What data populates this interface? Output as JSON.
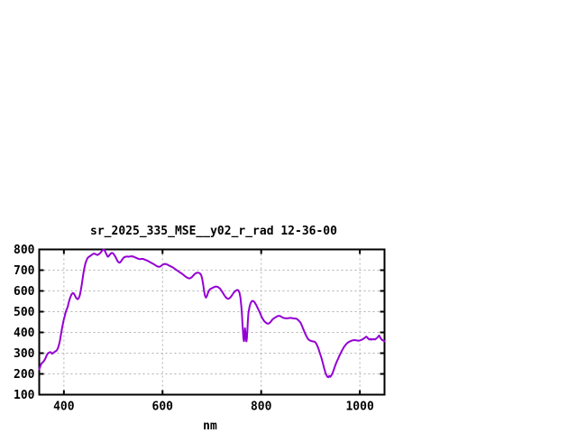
{
  "page": {
    "background": "#ffffff"
  },
  "chart_data": {
    "type": "line",
    "title": "sr_2025_335_MSE__y02_r_rad 12-36-00",
    "xlabel": "nm",
    "ylabel": "",
    "xlim": [
      350,
      1050
    ],
    "ylim": [
      100,
      800
    ],
    "xticks": [
      400,
      600,
      800,
      1000
    ],
    "yticks": [
      100,
      200,
      300,
      400,
      500,
      600,
      700,
      800
    ],
    "grid": true,
    "legend": "none",
    "line_color": "#9400d3",
    "grid_color": "#b0b0b0",
    "axis_color": "#000000",
    "series": [
      {
        "name": "sr_2025_335_MSE__y02_r_rad",
        "points": [
          [
            350,
            222
          ],
          [
            352,
            235
          ],
          [
            354,
            248
          ],
          [
            356,
            254
          ],
          [
            358,
            258
          ],
          [
            360,
            264
          ],
          [
            362,
            272
          ],
          [
            364,
            284
          ],
          [
            366,
            294
          ],
          [
            368,
            300
          ],
          [
            370,
            303
          ],
          [
            372,
            305
          ],
          [
            374,
            304
          ],
          [
            376,
            297
          ],
          [
            378,
            300
          ],
          [
            380,
            304
          ],
          [
            382,
            308
          ],
          [
            384,
            310
          ],
          [
            386,
            315
          ],
          [
            388,
            325
          ],
          [
            390,
            340
          ],
          [
            392,
            360
          ],
          [
            394,
            390
          ],
          [
            396,
            418
          ],
          [
            398,
            442
          ],
          [
            400,
            465
          ],
          [
            402,
            482
          ],
          [
            404,
            500
          ],
          [
            406,
            512
          ],
          [
            408,
            525
          ],
          [
            410,
            545
          ],
          [
            412,
            562
          ],
          [
            414,
            575
          ],
          [
            416,
            585
          ],
          [
            418,
            590
          ],
          [
            420,
            588
          ],
          [
            422,
            580
          ],
          [
            424,
            570
          ],
          [
            426,
            563
          ],
          [
            428,
            560
          ],
          [
            430,
            565
          ],
          [
            432,
            577
          ],
          [
            434,
            600
          ],
          [
            436,
            628
          ],
          [
            438,
            658
          ],
          [
            440,
            690
          ],
          [
            442,
            715
          ],
          [
            444,
            735
          ],
          [
            446,
            748
          ],
          [
            448,
            758
          ],
          [
            450,
            763
          ],
          [
            453,
            768
          ],
          [
            456,
            773
          ],
          [
            459,
            778
          ],
          [
            462,
            780
          ],
          [
            465,
            776
          ],
          [
            468,
            773
          ],
          [
            471,
            777
          ],
          [
            474,
            783
          ],
          [
            477,
            792
          ],
          [
            479,
            798
          ],
          [
            481,
            800
          ],
          [
            483,
            793
          ],
          [
            485,
            783
          ],
          [
            487,
            773
          ],
          [
            489,
            765
          ],
          [
            491,
            768
          ],
          [
            493,
            774
          ],
          [
            495,
            780
          ],
          [
            497,
            783
          ],
          [
            499,
            782
          ],
          [
            501,
            778
          ],
          [
            503,
            770
          ],
          [
            505,
            762
          ],
          [
            507,
            752
          ],
          [
            509,
            743
          ],
          [
            511,
            738
          ],
          [
            513,
            736
          ],
          [
            515,
            740
          ],
          [
            517,
            747
          ],
          [
            519,
            754
          ],
          [
            521,
            760
          ],
          [
            523,
            763
          ],
          [
            525,
            765
          ],
          [
            528,
            766
          ],
          [
            531,
            765
          ],
          [
            534,
            766
          ],
          [
            537,
            767
          ],
          [
            540,
            766
          ],
          [
            543,
            763
          ],
          [
            546,
            760
          ],
          [
            549,
            757
          ],
          [
            552,
            754
          ],
          [
            555,
            753
          ],
          [
            558,
            755
          ],
          [
            561,
            754
          ],
          [
            564,
            751
          ],
          [
            567,
            748
          ],
          [
            570,
            745
          ],
          [
            573,
            741
          ],
          [
            576,
            737
          ],
          [
            579,
            733
          ],
          [
            582,
            729
          ],
          [
            585,
            725
          ],
          [
            588,
            720
          ],
          [
            591,
            717
          ],
          [
            594,
            716
          ],
          [
            597,
            720
          ],
          [
            600,
            726
          ],
          [
            603,
            729
          ],
          [
            606,
            730
          ],
          [
            609,
            728
          ],
          [
            612,
            724
          ],
          [
            615,
            720
          ],
          [
            618,
            717
          ],
          [
            621,
            713
          ],
          [
            624,
            708
          ],
          [
            627,
            703
          ],
          [
            630,
            698
          ],
          [
            633,
            693
          ],
          [
            636,
            688
          ],
          [
            639,
            684
          ],
          [
            642,
            678
          ],
          [
            645,
            672
          ],
          [
            648,
            667
          ],
          [
            651,
            663
          ],
          [
            654,
            660
          ],
          [
            657,
            662
          ],
          [
            660,
            668
          ],
          [
            663,
            676
          ],
          [
            666,
            683
          ],
          [
            669,
            687
          ],
          [
            672,
            688
          ],
          [
            675,
            686
          ],
          [
            678,
            678
          ],
          [
            680,
            662
          ],
          [
            682,
            635
          ],
          [
            684,
            605
          ],
          [
            686,
            578
          ],
          [
            688,
            568
          ],
          [
            690,
            575
          ],
          [
            692,
            590
          ],
          [
            694,
            601
          ],
          [
            696,
            608
          ],
          [
            698,
            611
          ],
          [
            701,
            614
          ],
          [
            704,
            618
          ],
          [
            707,
            621
          ],
          [
            710,
            621
          ],
          [
            713,
            618
          ],
          [
            716,
            612
          ],
          [
            719,
            603
          ],
          [
            722,
            592
          ],
          [
            725,
            580
          ],
          [
            728,
            570
          ],
          [
            731,
            563
          ],
          [
            734,
            562
          ],
          [
            737,
            567
          ],
          [
            740,
            576
          ],
          [
            743,
            587
          ],
          [
            746,
            596
          ],
          [
            749,
            602
          ],
          [
            752,
            605
          ],
          [
            754,
            602
          ],
          [
            756,
            592
          ],
          [
            758,
            568
          ],
          [
            760,
            520
          ],
          [
            761,
            485
          ],
          [
            762,
            445
          ],
          [
            763,
            405
          ],
          [
            764,
            372
          ],
          [
            765,
            358
          ],
          [
            766,
            372
          ],
          [
            767,
            420
          ],
          [
            768,
            400
          ],
          [
            769,
            368
          ],
          [
            770,
            357
          ],
          [
            771,
            370
          ],
          [
            772,
            410
          ],
          [
            773,
            455
          ],
          [
            774,
            492
          ],
          [
            776,
            520
          ],
          [
            778,
            538
          ],
          [
            780,
            548
          ],
          [
            782,
            552
          ],
          [
            784,
            551
          ],
          [
            786,
            547
          ],
          [
            788,
            540
          ],
          [
            790,
            532
          ],
          [
            792,
            522
          ],
          [
            794,
            512
          ],
          [
            796,
            502
          ],
          [
            798,
            492
          ],
          [
            800,
            480
          ],
          [
            802,
            470
          ],
          [
            804,
            462
          ],
          [
            806,
            455
          ],
          [
            808,
            450
          ],
          [
            810,
            446
          ],
          [
            812,
            443
          ],
          [
            814,
            442
          ],
          [
            816,
            444
          ],
          [
            818,
            448
          ],
          [
            820,
            454
          ],
          [
            822,
            460
          ],
          [
            824,
            465
          ],
          [
            826,
            468
          ],
          [
            828,
            471
          ],
          [
            830,
            474
          ],
          [
            832,
            477
          ],
          [
            834,
            479
          ],
          [
            836,
            480
          ],
          [
            838,
            479
          ],
          [
            840,
            477
          ],
          [
            842,
            474
          ],
          [
            844,
            471
          ],
          [
            847,
            469
          ],
          [
            850,
            468
          ],
          [
            853,
            468
          ],
          [
            856,
            469
          ],
          [
            859,
            470
          ],
          [
            862,
            469
          ],
          [
            865,
            468
          ],
          [
            868,
            467
          ],
          [
            871,
            466
          ],
          [
            874,
            462
          ],
          [
            877,
            455
          ],
          [
            880,
            446
          ],
          [
            883,
            430
          ],
          [
            886,
            412
          ],
          [
            889,
            395
          ],
          [
            892,
            380
          ],
          [
            895,
            368
          ],
          [
            898,
            362
          ],
          [
            901,
            359
          ],
          [
            904,
            357
          ],
          [
            907,
            356
          ],
          [
            910,
            352
          ],
          [
            913,
            340
          ],
          [
            916,
            322
          ],
          [
            919,
            300
          ],
          [
            922,
            278
          ],
          [
            925,
            252
          ],
          [
            928,
            225
          ],
          [
            931,
            200
          ],
          [
            934,
            187
          ],
          [
            936,
            184
          ],
          [
            938,
            190
          ],
          [
            940,
            186
          ],
          [
            942,
            192
          ],
          [
            944,
            200
          ],
          [
            946,
            212
          ],
          [
            948,
            226
          ],
          [
            950,
            240
          ],
          [
            953,
            258
          ],
          [
            956,
            274
          ],
          [
            959,
            290
          ],
          [
            962,
            305
          ],
          [
            965,
            318
          ],
          [
            968,
            330
          ],
          [
            971,
            340
          ],
          [
            974,
            348
          ],
          [
            977,
            353
          ],
          [
            980,
            357
          ],
          [
            983,
            360
          ],
          [
            986,
            362
          ],
          [
            989,
            363
          ],
          [
            992,
            362
          ],
          [
            995,
            361
          ],
          [
            998,
            360
          ],
          [
            1001,
            362
          ],
          [
            1004,
            365
          ],
          [
            1007,
            369
          ],
          [
            1010,
            374
          ],
          [
            1013,
            380
          ],
          [
            1015,
            376
          ],
          [
            1017,
            370
          ],
          [
            1019,
            366
          ],
          [
            1021,
            369
          ],
          [
            1023,
            365
          ],
          [
            1025,
            368
          ],
          [
            1027,
            366
          ],
          [
            1029,
            368
          ],
          [
            1031,
            366
          ],
          [
            1033,
            370
          ],
          [
            1035,
            374
          ],
          [
            1037,
            379
          ],
          [
            1039,
            385
          ],
          [
            1041,
            377
          ],
          [
            1043,
            369
          ],
          [
            1045,
            364
          ],
          [
            1047,
            361
          ],
          [
            1050,
            358
          ]
        ]
      }
    ]
  }
}
